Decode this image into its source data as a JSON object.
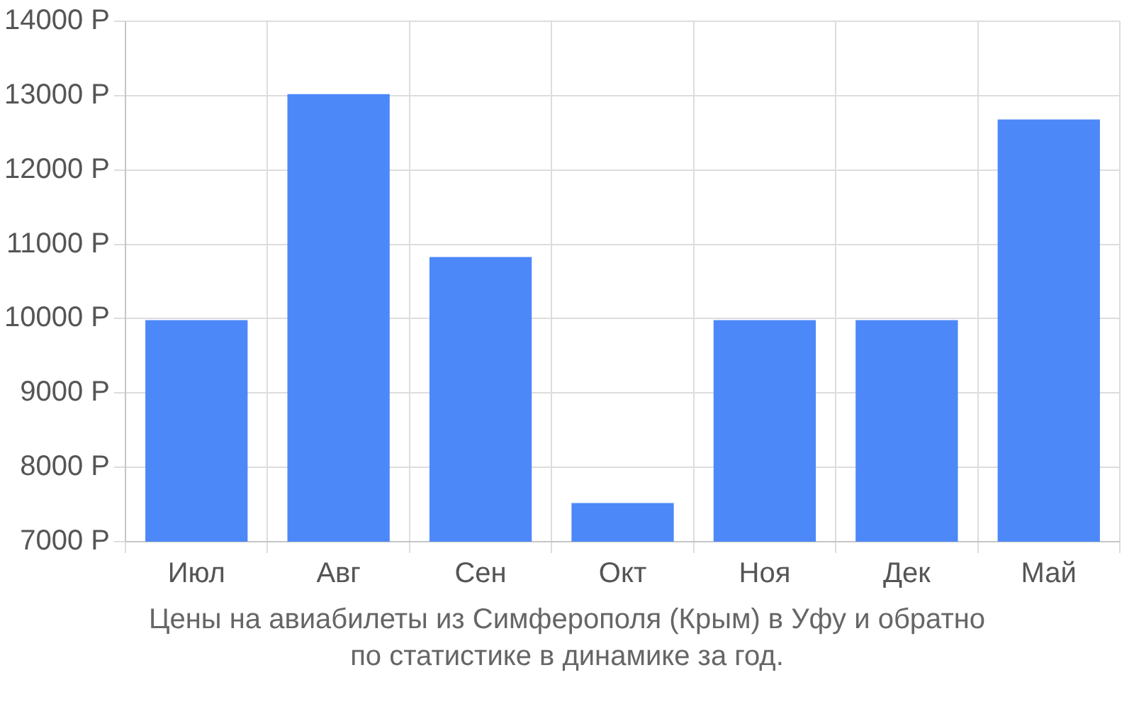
{
  "chart_data": {
    "type": "bar",
    "categories": [
      "Июл",
      "Авг",
      "Сен",
      "Окт",
      "Ноя",
      "Дек",
      "Май"
    ],
    "values": [
      9980,
      13020,
      10830,
      7520,
      9980,
      9980,
      12680
    ],
    "color": "#4d88f8",
    "ylim": [
      7000,
      14000
    ],
    "yticks": [
      {
        "value": 7000,
        "label": "7000 Р"
      },
      {
        "value": 8000,
        "label": "8000 Р"
      },
      {
        "value": 9000,
        "label": "9000 Р"
      },
      {
        "value": 10000,
        "label": "10000 Р"
      },
      {
        "value": 11000,
        "label": "11000 Р"
      },
      {
        "value": 12000,
        "label": "12000 Р"
      },
      {
        "value": 13000,
        "label": "13000 Р"
      },
      {
        "value": 14000,
        "label": "14000 Р"
      }
    ],
    "grid": true,
    "annotations": [
      "Цены на авиабилеты из Симферополя (Крым) в Уфу и обратно",
      "по статистике в динамике за год."
    ]
  }
}
